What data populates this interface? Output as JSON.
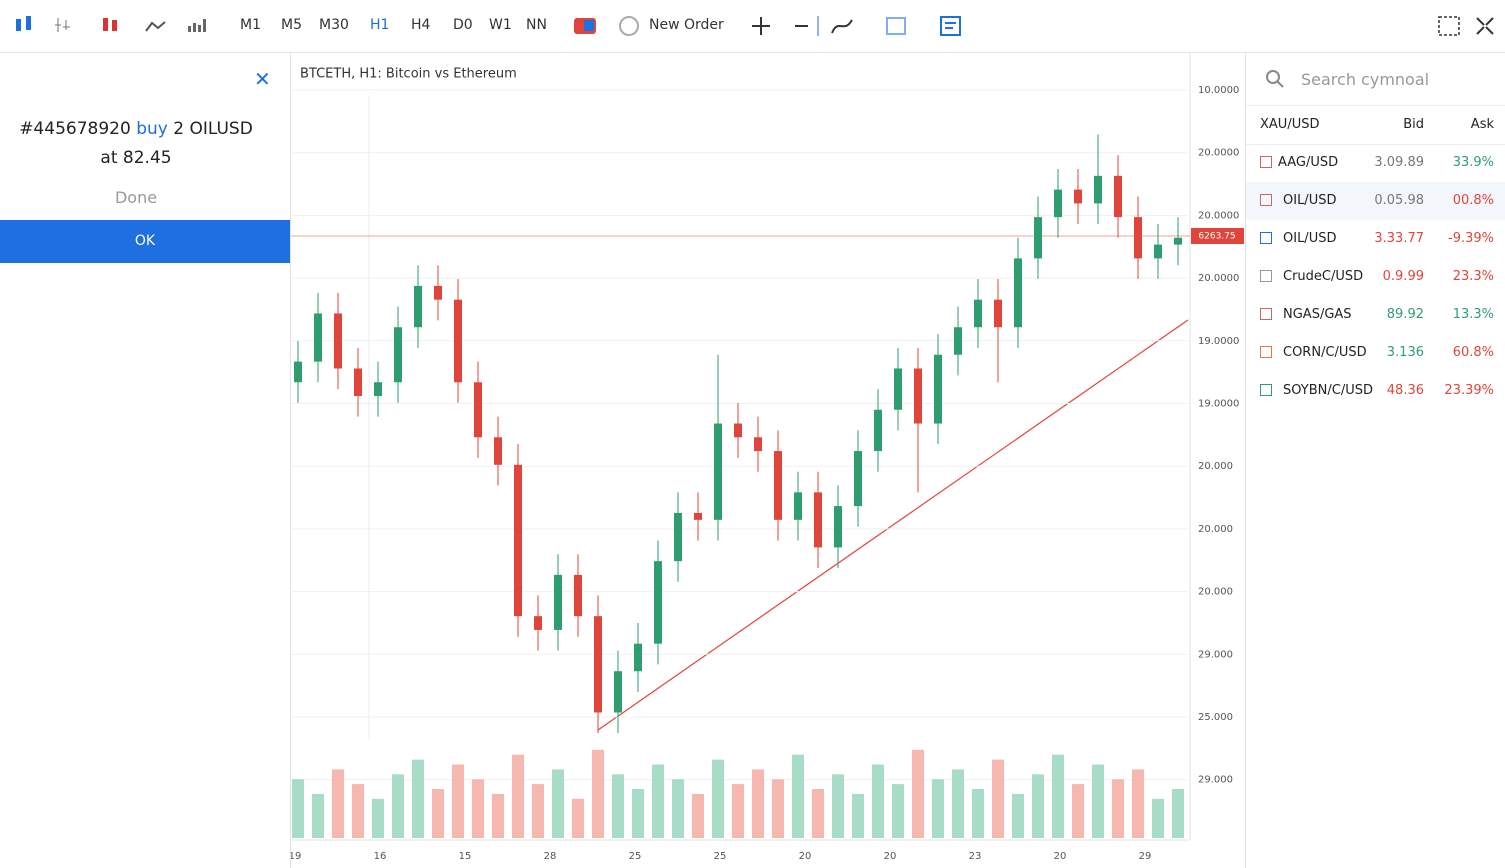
{
  "toolbar": {
    "timeframes": [
      "M1",
      "M5",
      "M30",
      "H1",
      "H4",
      "D0",
      "W1",
      "NN"
    ],
    "active_timeframe": 3,
    "new_order": "New Order"
  },
  "order_panel": {
    "order_id": "#445678920",
    "side": "buy",
    "quantity_symbol": "2 OILUSD",
    "price_text": "at 82.45",
    "done": "Done",
    "ok": "OK"
  },
  "chart": {
    "title": "BTCETH, H1: Bitcoin vs Ethereum",
    "price_ticks": [
      "10.0000",
      "20.0000",
      "20.0000",
      "20.0000",
      "19.0000",
      "19.0000",
      "20.000",
      "20.000",
      "20.000",
      "29.000",
      "25.000",
      "29.000"
    ],
    "time_labels": [
      "19",
      "16",
      "15",
      "28",
      "25",
      "25",
      "20",
      "20",
      "23",
      "20",
      "29"
    ],
    "current_price_label": "6263.75",
    "ylim": [
      0,
      100
    ],
    "volume_lim": [
      0,
      100
    ],
    "up_color": "#2f9d6f",
    "down_color": "#e0453b",
    "up_volume_color": "#a9dcc6",
    "down_volume_color": "#f6b7b1",
    "candles": [
      [
        52,
        58,
        49,
        55
      ],
      [
        55,
        65,
        52,
        62
      ],
      [
        62,
        65,
        51,
        54
      ],
      [
        54,
        57,
        47,
        50
      ],
      [
        50,
        55,
        47,
        52
      ],
      [
        52,
        63,
        49,
        60
      ],
      [
        60,
        69,
        57,
        66
      ],
      [
        66,
        69,
        61,
        64
      ],
      [
        64,
        67,
        49,
        52
      ],
      [
        52,
        55,
        41,
        44
      ],
      [
        44,
        47,
        37,
        40
      ],
      [
        40,
        43,
        15,
        18
      ],
      [
        18,
        21,
        13,
        16
      ],
      [
        16,
        27,
        13,
        24
      ],
      [
        24,
        27,
        15,
        18
      ],
      [
        18,
        21,
        1,
        4
      ],
      [
        4,
        13,
        1,
        10
      ],
      [
        10,
        17,
        7,
        14
      ],
      [
        14,
        29,
        11,
        26
      ],
      [
        26,
        36,
        23,
        33
      ],
      [
        33,
        36,
        29,
        32
      ],
      [
        32,
        56,
        29,
        46
      ],
      [
        46,
        49,
        41,
        44
      ],
      [
        44,
        47,
        39,
        42
      ],
      [
        42,
        45,
        29,
        32
      ],
      [
        32,
        39,
        29,
        36
      ],
      [
        36,
        39,
        25,
        28
      ],
      [
        28,
        37,
        25,
        34
      ],
      [
        34,
        45,
        31,
        42
      ],
      [
        42,
        51,
        39,
        48
      ],
      [
        48,
        57,
        45,
        54
      ],
      [
        54,
        57,
        36,
        46
      ],
      [
        46,
        59,
        43,
        56
      ],
      [
        56,
        63,
        53,
        60
      ],
      [
        60,
        67,
        57,
        64
      ],
      [
        64,
        67,
        52,
        60
      ],
      [
        60,
        73,
        57,
        70
      ],
      [
        70,
        79,
        67,
        76
      ],
      [
        76,
        83,
        73,
        80
      ],
      [
        80,
        83,
        75,
        78
      ],
      [
        78,
        88,
        75,
        82
      ],
      [
        82,
        85,
        73,
        76
      ],
      [
        76,
        79,
        67,
        70
      ],
      [
        70,
        75,
        67,
        72
      ],
      [
        72,
        76,
        69,
        73
      ]
    ],
    "volumes": [
      60,
      45,
      70,
      55,
      40,
      65,
      80,
      50,
      75,
      60,
      45,
      85,
      55,
      70,
      40,
      90,
      65,
      50,
      75,
      60,
      45,
      80,
      55,
      70,
      60,
      85,
      50,
      65,
      45,
      75,
      55,
      90,
      60,
      70,
      50,
      80,
      45,
      65,
      85,
      55,
      75,
      60,
      70,
      40,
      50
    ]
  },
  "watchlist": {
    "search_placeholder": "Search cymnoal",
    "header": [
      "XAU/USD",
      "Bid",
      "Ask"
    ],
    "rows": [
      [
        "AAG/USD",
        "3.09.89",
        "33.9%"
      ],
      [
        "OIL/USD",
        "0.05.98",
        "00.8%"
      ],
      [
        "OIL/USD",
        "3.33.77",
        "-9.39%"
      ],
      [
        "CrudeC/USD",
        "0.9.99",
        "23.3%"
      ],
      [
        "NGAS/GAS",
        "89.92",
        "13.3%"
      ],
      [
        "CORN/C/USD",
        "3.136",
        "60.8%"
      ],
      [
        "SOYBN/C/USD",
        "48.36",
        "23.39%"
      ]
    ]
  }
}
